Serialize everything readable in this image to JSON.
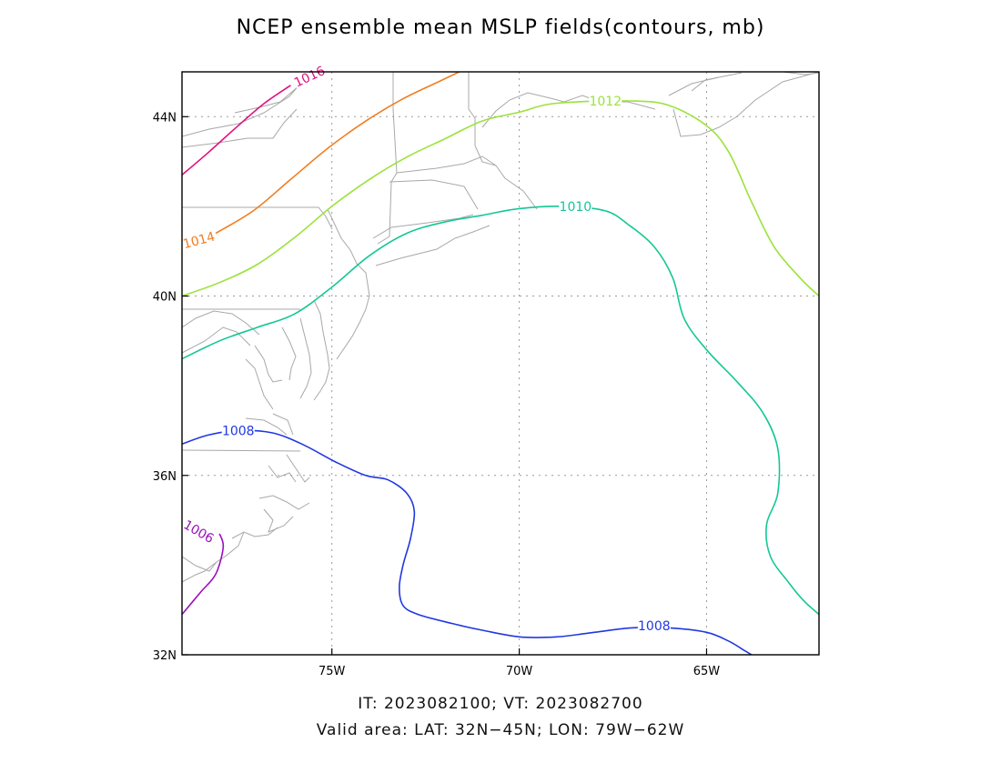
{
  "title": "NCEP ensemble mean MSLP fields(contours, mb)",
  "footer": {
    "line1": "IT: 2023082100; VT: 2023082700",
    "line2": "Valid area: LAT: 32N−45N; LON: 79W−62W"
  },
  "map": {
    "lon_range": [
      -79,
      -62
    ],
    "lat_range": [
      32,
      45
    ],
    "lon_ticks": [
      {
        "value": -75,
        "label": "75W"
      },
      {
        "value": -70,
        "label": "70W"
      },
      {
        "value": -65,
        "label": "65W"
      }
    ],
    "lat_ticks": [
      {
        "value": 32,
        "label": "32N"
      },
      {
        "value": 36,
        "label": "36N"
      },
      {
        "value": 40,
        "label": "40N"
      },
      {
        "value": 44,
        "label": "44N"
      }
    ],
    "grid": true,
    "coastline_color": "#a8a8a8"
  },
  "contours": [
    {
      "level": "1016",
      "color": "#e0117f",
      "points": [
        [
          -79,
          42.7
        ],
        [
          -78.3,
          43.2
        ],
        [
          -77.5,
          43.8
        ],
        [
          -76.8,
          44.3
        ],
        [
          -76.1,
          44.7
        ]
      ],
      "labels": [
        {
          "lon": -75.6,
          "lat": 44.9,
          "angle": -25
        }
      ]
    },
    {
      "level": "1014",
      "color": "#ef7d22",
      "points": [
        [
          -78.1,
          41.4
        ],
        [
          -77.1,
          41.9
        ],
        [
          -76.1,
          42.6
        ],
        [
          -75.1,
          43.3
        ],
        [
          -74.1,
          43.9
        ],
        [
          -73.1,
          44.4
        ],
        [
          -72.1,
          44.8
        ],
        [
          -71.6,
          45
        ]
      ],
      "labels": [
        {
          "lon": -78.55,
          "lat": 41.25,
          "angle": -15
        }
      ]
    },
    {
      "level": "1012",
      "color": "#9be23a",
      "points": [
        [
          -79,
          40
        ],
        [
          -78,
          40.3
        ],
        [
          -77,
          40.7
        ],
        [
          -76,
          41.3
        ],
        [
          -75,
          42.0
        ],
        [
          -74,
          42.6
        ],
        [
          -73,
          43.1
        ],
        [
          -72,
          43.5
        ],
        [
          -71,
          43.9
        ],
        [
          -70,
          44.1
        ],
        [
          -69,
          44.3
        ],
        [
          -67,
          44.35
        ],
        [
          -66,
          44.25
        ],
        [
          -65,
          43.8
        ],
        [
          -64.4,
          43.2
        ],
        [
          -63.8,
          42.1
        ],
        [
          -63.2,
          41.1
        ],
        [
          -62.5,
          40.4
        ],
        [
          -62,
          40
        ]
      ],
      "labels": [
        {
          "lon": -67.7,
          "lat": 44.35,
          "angle": 0
        }
      ]
    },
    {
      "level": "1010",
      "color": "#14c795",
      "points": [
        [
          -79,
          38.6
        ],
        [
          -78,
          39.0
        ],
        [
          -77,
          39.3
        ],
        [
          -76,
          39.6
        ],
        [
          -75,
          40.2
        ],
        [
          -74,
          40.9
        ],
        [
          -73,
          41.4
        ],
        [
          -72,
          41.65
        ],
        [
          -71,
          41.8
        ],
        [
          -70,
          41.95
        ],
        [
          -68.8,
          42.0
        ],
        [
          -67.7,
          41.9
        ],
        [
          -67.1,
          41.6
        ],
        [
          -66.4,
          41.1
        ],
        [
          -65.9,
          40.4
        ],
        [
          -65.6,
          39.5
        ],
        [
          -65,
          38.8
        ],
        [
          -64.2,
          38.1
        ],
        [
          -63.5,
          37.4
        ],
        [
          -63.1,
          36.6
        ],
        [
          -63.1,
          35.6
        ],
        [
          -63.4,
          34.9
        ],
        [
          -63.3,
          34.2
        ],
        [
          -62.8,
          33.6
        ],
        [
          -62.4,
          33.2
        ],
        [
          -62,
          32.9
        ]
      ],
      "labels": [
        {
          "lon": -68.5,
          "lat": 42.0,
          "angle": 0
        }
      ]
    },
    {
      "level": "1008",
      "color": "#2038e0",
      "points": [
        [
          -79,
          36.7
        ],
        [
          -78.3,
          36.9
        ],
        [
          -77.5,
          37.0
        ],
        [
          -76.6,
          36.95
        ],
        [
          -75.8,
          36.7
        ],
        [
          -74.9,
          36.3
        ],
        [
          -74.1,
          36.0
        ],
        [
          -73.5,
          35.9
        ],
        [
          -73.0,
          35.6
        ],
        [
          -72.8,
          35.2
        ],
        [
          -72.9,
          34.6
        ],
        [
          -73.1,
          34.0
        ],
        [
          -73.2,
          33.5
        ],
        [
          -73.1,
          33.1
        ],
        [
          -72.7,
          32.9
        ],
        [
          -71.8,
          32.7
        ],
        [
          -71,
          32.55
        ],
        [
          -70,
          32.4
        ],
        [
          -69,
          32.4
        ],
        [
          -68,
          32.5
        ],
        [
          -67,
          32.6
        ],
        [
          -66,
          32.6
        ],
        [
          -65,
          32.5
        ],
        [
          -64.4,
          32.3
        ],
        [
          -64.0,
          32.1
        ],
        [
          -63.8,
          32.0
        ]
      ],
      "labels": [
        {
          "lon": -77.5,
          "lat": 37.0,
          "angle": 0
        },
        {
          "lon": -66.4,
          "lat": 32.65,
          "angle": 0
        }
      ]
    },
    {
      "level": "1006",
      "color": "#9b0fbb",
      "points": [
        [
          -79,
          32.9
        ],
        [
          -78.5,
          33.4
        ],
        [
          -78.1,
          33.8
        ],
        [
          -77.9,
          34.4
        ],
        [
          -78.0,
          34.7
        ]
      ],
      "labels": [
        {
          "lon": -78.55,
          "lat": 34.75,
          "angle": 30
        }
      ]
    }
  ]
}
